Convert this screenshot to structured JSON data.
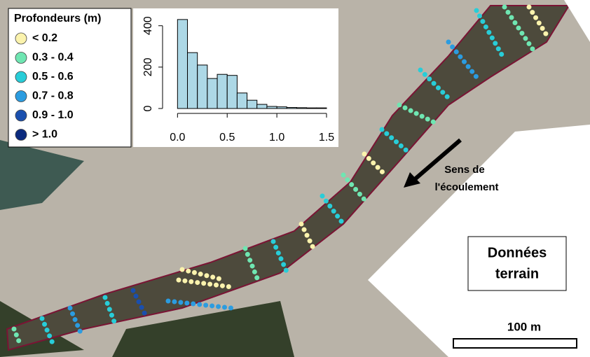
{
  "legend": {
    "title": "Profondeurs (m)",
    "items": [
      {
        "label": "< 0.2",
        "color": "#fbf3ad"
      },
      {
        "label": "0.3 - 0.4",
        "color": "#6fe6b2"
      },
      {
        "label": "0.5 - 0.6",
        "color": "#28cdd8"
      },
      {
        "label": "0.7 - 0.8",
        "color": "#2b9ce0"
      },
      {
        "label": "0.9 - 1.0",
        "color": "#1a4fae"
      },
      {
        "label": "> 1.0",
        "color": "#0b2a7e"
      }
    ]
  },
  "chart_data": {
    "type": "histogram",
    "color": "#add8e6",
    "bins": [
      0,
      0.1,
      0.2,
      0.3,
      0.4,
      0.5,
      0.6,
      0.7,
      0.8,
      0.9,
      1.0,
      1.1,
      1.2,
      1.3,
      1.4,
      1.5
    ],
    "counts": [
      430,
      270,
      210,
      145,
      165,
      160,
      75,
      40,
      20,
      10,
      8,
      5,
      4,
      3,
      3
    ],
    "xlim": [
      -0.08,
      1.62
    ],
    "ylim": [
      0,
      460
    ],
    "xticks": [
      {
        "value": 0,
        "label": "0.0"
      },
      0.5,
      {
        "value": 1,
        "label": "1.0"
      },
      1.5
    ],
    "yticks": [
      0,
      200,
      400
    ]
  },
  "annotations": {
    "flow_line1": "Sens de",
    "flow_line2": "l'écoulement",
    "box_line1": "Données",
    "box_line2": "terrain"
  },
  "scale_bar": {
    "label": "100 m"
  }
}
